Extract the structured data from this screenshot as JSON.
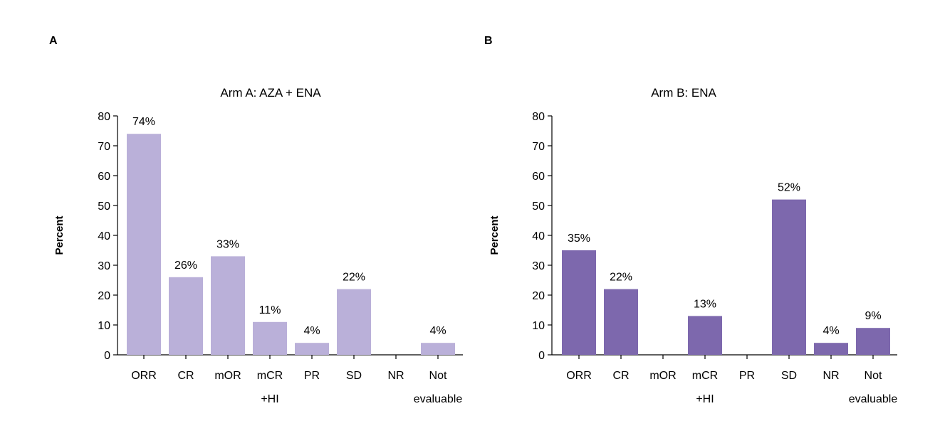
{
  "chart_data": [
    {
      "panel": "A",
      "type": "bar",
      "title": "Arm A: AZA + ENA",
      "ylabel": "Percent",
      "xlabel": "",
      "ylim": [
        0,
        80
      ],
      "yticks": [
        "0",
        "10",
        "20",
        "30",
        "40",
        "50",
        "60",
        "70",
        "80"
      ],
      "grid": false,
      "bar_color": "#bab0d9",
      "categories": [
        {
          "line1": "ORR",
          "line2": ""
        },
        {
          "line1": "CR",
          "line2": ""
        },
        {
          "line1": "mOR",
          "line2": ""
        },
        {
          "line1": "mCR",
          "line2": "+HI"
        },
        {
          "line1": "PR",
          "line2": ""
        },
        {
          "line1": "SD",
          "line2": ""
        },
        {
          "line1": "NR",
          "line2": ""
        },
        {
          "line1": "Not",
          "line2": "evaluable"
        }
      ],
      "values": [
        74,
        26,
        33,
        11,
        4,
        22,
        0,
        4
      ],
      "labels": [
        "74%",
        "26%",
        "33%",
        "11%",
        "4%",
        "22%",
        "",
        "4%"
      ]
    },
    {
      "panel": "B",
      "type": "bar",
      "title": "Arm B: ENA",
      "ylabel": "Percent",
      "xlabel": "",
      "ylim": [
        0,
        80
      ],
      "yticks": [
        "0",
        "10",
        "20",
        "30",
        "40",
        "50",
        "60",
        "70",
        "80"
      ],
      "grid": false,
      "bar_color": "#7d68ad",
      "categories": [
        {
          "line1": "ORR",
          "line2": ""
        },
        {
          "line1": "CR",
          "line2": ""
        },
        {
          "line1": "mOR",
          "line2": ""
        },
        {
          "line1": "mCR",
          "line2": "+HI"
        },
        {
          "line1": "PR",
          "line2": ""
        },
        {
          "line1": "SD",
          "line2": ""
        },
        {
          "line1": "NR",
          "line2": ""
        },
        {
          "line1": "Not",
          "line2": "evaluable"
        }
      ],
      "values": [
        35,
        22,
        0,
        13,
        0,
        52,
        4,
        9
      ],
      "labels": [
        "35%",
        "22%",
        "",
        "13%",
        "",
        "52%",
        "4%",
        "9%"
      ]
    }
  ]
}
